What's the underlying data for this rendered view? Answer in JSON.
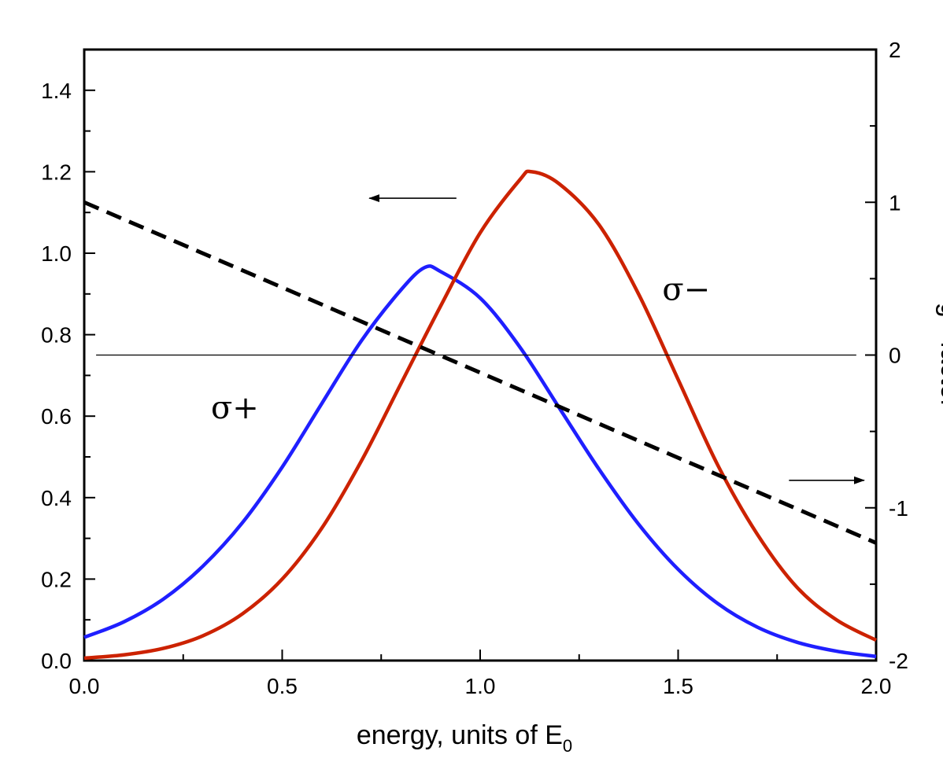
{
  "chart_data": {
    "type": "line",
    "title": "",
    "xlabel": "energy, units of E",
    "xlabel_subscript": "0",
    "ylabel": "",
    "y2label": "g - factor",
    "xlim": [
      0.0,
      2.0
    ],
    "ylim": [
      0.0,
      1.5
    ],
    "y2lim": [
      -2,
      2
    ],
    "x_ticks": [
      "0.0",
      "0.5",
      "1.0",
      "1.5",
      "2.0"
    ],
    "y_ticks": [
      "0.0",
      "0.2",
      "0.4",
      "0.6",
      "0.8",
      "1.0",
      "1.2",
      "1.4"
    ],
    "y2_ticks": [
      "-2",
      "-1",
      "0",
      "1",
      "2"
    ],
    "series": [
      {
        "name": "σ+",
        "axis": "left",
        "color": "#1f1fff",
        "style": "solid",
        "x": [
          0.0,
          0.1,
          0.2,
          0.3,
          0.4,
          0.5,
          0.6,
          0.7,
          0.8,
          0.86,
          0.9,
          1.0,
          1.1,
          1.2,
          1.3,
          1.4,
          1.5,
          1.6,
          1.7,
          1.8,
          1.9,
          2.0
        ],
        "y": [
          0.057,
          0.095,
          0.151,
          0.232,
          0.339,
          0.475,
          0.631,
          0.785,
          0.91,
          0.965,
          0.955,
          0.89,
          0.77,
          0.62,
          0.47,
          0.335,
          0.224,
          0.14,
          0.082,
          0.045,
          0.023,
          0.01
        ]
      },
      {
        "name": "σ−",
        "axis": "left",
        "color": "#cc2200",
        "style": "solid",
        "x": [
          0.0,
          0.1,
          0.2,
          0.3,
          0.4,
          0.5,
          0.6,
          0.7,
          0.8,
          0.9,
          1.0,
          1.1,
          1.13,
          1.2,
          1.3,
          1.4,
          1.5,
          1.6,
          1.7,
          1.8,
          1.9,
          2.0
        ],
        "y": [
          0.006,
          0.014,
          0.03,
          0.061,
          0.115,
          0.2,
          0.325,
          0.49,
          0.68,
          0.87,
          1.05,
          1.18,
          1.2,
          1.17,
          1.07,
          0.9,
          0.69,
          0.48,
          0.31,
          0.18,
          0.1,
          0.05
        ]
      },
      {
        "name": "g - factor",
        "axis": "right",
        "color": "#000000",
        "style": "dashed",
        "x": [
          0.0,
          2.0
        ],
        "y": [
          1.0,
          -1.23
        ]
      },
      {
        "name": "zero line",
        "axis": "right",
        "color": "#000000",
        "style": "thin",
        "x": [
          0.03,
          1.95
        ],
        "y": [
          0.0,
          0.0
        ]
      }
    ],
    "annotations": [
      {
        "text": "σ+",
        "x": 0.32,
        "y": 0.595,
        "axis": "left"
      },
      {
        "text": "σ−",
        "x": 1.46,
        "y": 0.885,
        "axis": "left"
      },
      {
        "text": "← arrow pointing to left axis",
        "from_x": 0.94,
        "to_x": 0.72,
        "y": 1.135,
        "axis": "left",
        "direction": "left"
      },
      {
        "text": "→ arrow pointing to right axis",
        "from_x": 1.78,
        "to_x": 1.97,
        "y": -0.82,
        "axis": "right",
        "direction": "right"
      }
    ]
  }
}
